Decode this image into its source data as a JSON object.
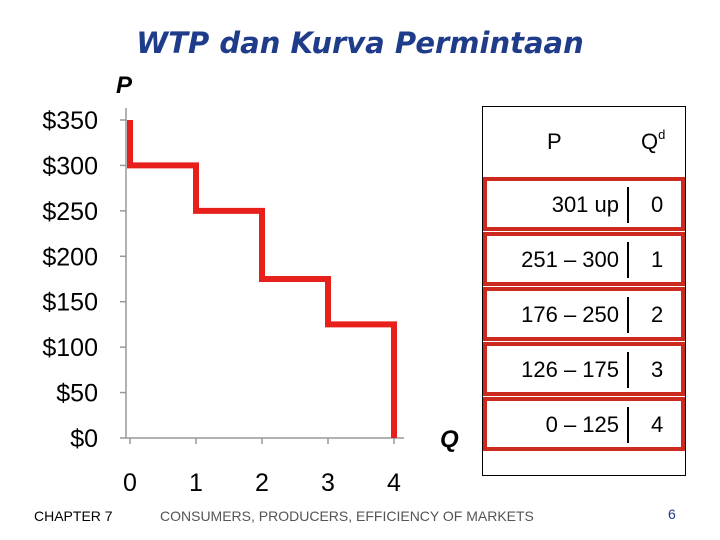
{
  "title": "WTP dan Kurva Permintaan",
  "chart_data": {
    "type": "line",
    "step": true,
    "ylabel": "P",
    "xlabel": "Q",
    "yticks": [
      "$0",
      "$50",
      "$100",
      "$150",
      "$200",
      "$250",
      "$300",
      "$350"
    ],
    "xticks": [
      "0",
      "1",
      "2",
      "3",
      "4"
    ],
    "xlim": [
      0,
      4
    ],
    "ylim": [
      0,
      350
    ],
    "series": [
      {
        "color": "#e8201b",
        "points": [
          [
            0,
            350
          ],
          [
            0,
            300
          ],
          [
            1,
            300
          ],
          [
            1,
            250
          ],
          [
            2,
            250
          ],
          [
            2,
            175
          ],
          [
            3,
            175
          ],
          [
            3,
            125
          ],
          [
            4,
            125
          ],
          [
            4,
            0
          ]
        ]
      }
    ],
    "table": {
      "headers": {
        "p": "P",
        "q": "Q",
        "q_sup": "d"
      },
      "rows": [
        {
          "range": "301 up",
          "qd": "0"
        },
        {
          "range": "251 – 300",
          "qd": "1"
        },
        {
          "range": "176 – 250",
          "qd": "2"
        },
        {
          "range": "126 – 175",
          "qd": "3"
        },
        {
          "range": "0 – 125",
          "qd": "4"
        }
      ]
    }
  },
  "footer": {
    "chapter": "CHAPTER 7",
    "subject": "CONSUMERS, PRODUCERS, EFFICIENCY OF MARKETS",
    "page": "6"
  }
}
